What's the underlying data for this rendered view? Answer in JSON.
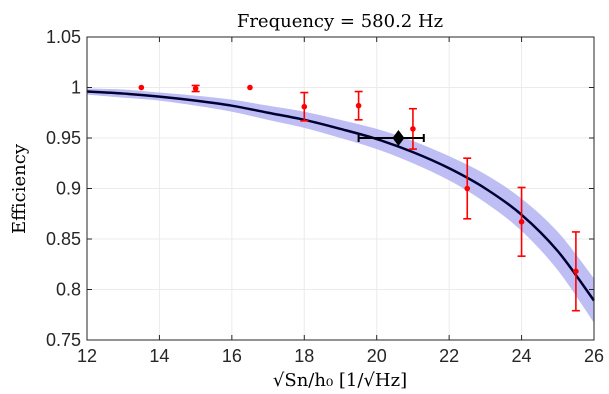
{
  "chart_data": {
    "type": "scatter",
    "title": "Frequency = 580.2 Hz",
    "xlabel": "√Sn/h₀ [1/√Hz]",
    "ylabel": "Efficiency",
    "xlim": [
      12,
      26
    ],
    "ylim": [
      0.75,
      1.05
    ],
    "xticks": [
      "12",
      "14",
      "16",
      "18",
      "20",
      "22",
      "24",
      "26"
    ],
    "yticks": [
      "0.75",
      "0.8",
      "0.85",
      "0.9",
      "0.95",
      "1",
      "1.05"
    ],
    "grid": true,
    "legend": "none",
    "series": [
      {
        "kind": "points_with_errorbars",
        "color": "#ff0000",
        "points": [
          {
            "x": 13.5,
            "y": 1.0,
            "err": 0.0
          },
          {
            "x": 15.0,
            "y": 0.999,
            "err": 0.003
          },
          {
            "x": 16.5,
            "y": 1.0,
            "err": 0.0
          },
          {
            "x": 18.0,
            "y": 0.981,
            "err": 0.014
          },
          {
            "x": 19.5,
            "y": 0.982,
            "err": 0.014
          },
          {
            "x": 21.0,
            "y": 0.959,
            "err": 0.02
          },
          {
            "x": 22.5,
            "y": 0.9,
            "err": 0.03
          },
          {
            "x": 24.0,
            "y": 0.867,
            "err": 0.034
          },
          {
            "x": 25.5,
            "y": 0.818,
            "err": 0.039
          }
        ]
      },
      {
        "kind": "fit_curve",
        "color": "#000033",
        "band_color": "#b3b3f2",
        "x": [
          12,
          13,
          14,
          15,
          16,
          17,
          18,
          19,
          20,
          21,
          22,
          23,
          24,
          25,
          26
        ],
        "y": [
          0.996,
          0.994,
          0.991,
          0.987,
          0.982,
          0.975,
          0.968,
          0.959,
          0.949,
          0.936,
          0.92,
          0.9,
          0.874,
          0.838,
          0.789
        ],
        "band_halfwidth": [
          0.003,
          0.004,
          0.004,
          0.005,
          0.006,
          0.007,
          0.008,
          0.009,
          0.01,
          0.011,
          0.012,
          0.014,
          0.016,
          0.019,
          0.022
        ]
      },
      {
        "kind": "marker_with_xerror",
        "color": "#000000",
        "x": 20.6,
        "y": 0.95,
        "xerr_low": 1.1,
        "xerr_high": 0.7
      }
    ]
  }
}
